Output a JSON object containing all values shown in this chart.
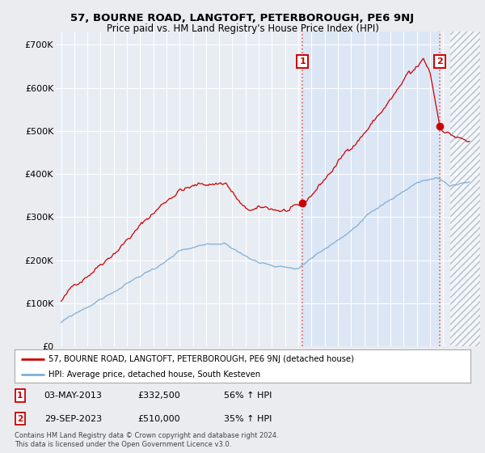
{
  "title_line1": "57, BOURNE ROAD, LANGTOFT, PETERBOROUGH, PE6 9NJ",
  "title_line2": "Price paid vs. HM Land Registry's House Price Index (HPI)",
  "ylabel_ticks": [
    "£0",
    "£100K",
    "£200K",
    "£300K",
    "£400K",
    "£500K",
    "£600K",
    "£700K"
  ],
  "ytick_values": [
    0,
    100000,
    200000,
    300000,
    400000,
    500000,
    600000,
    700000
  ],
  "ylim": [
    0,
    730000
  ],
  "xlim_start": 1994.6,
  "xlim_end": 2026.8,
  "background_color": "#eaecf0",
  "plot_bg_color": "#e8ecf3",
  "highlight_bg_color": "#dce6f5",
  "hatch_region_start": 2024.5,
  "grid_color": "#ffffff",
  "red_line_color": "#cc0000",
  "blue_line_color": "#7fafd4",
  "marker1_date": 2013.33,
  "marker1_value": 332500,
  "marker1_label": "1",
  "marker2_date": 2023.75,
  "marker2_value": 510000,
  "marker2_label": "2",
  "legend_red_label": "57, BOURNE ROAD, LANGTOFT, PETERBOROUGH, PE6 9NJ (detached house)",
  "legend_blue_label": "HPI: Average price, detached house, South Kesteven",
  "note1_label": "1",
  "note1_date": "03-MAY-2013",
  "note1_price": "£332,500",
  "note1_hpi": "56% ↑ HPI",
  "note2_label": "2",
  "note2_date": "29-SEP-2023",
  "note2_price": "£510,000",
  "note2_hpi": "35% ↑ HPI",
  "footer": "Contains HM Land Registry data © Crown copyright and database right 2024.\nThis data is licensed under the Open Government Licence v3.0."
}
